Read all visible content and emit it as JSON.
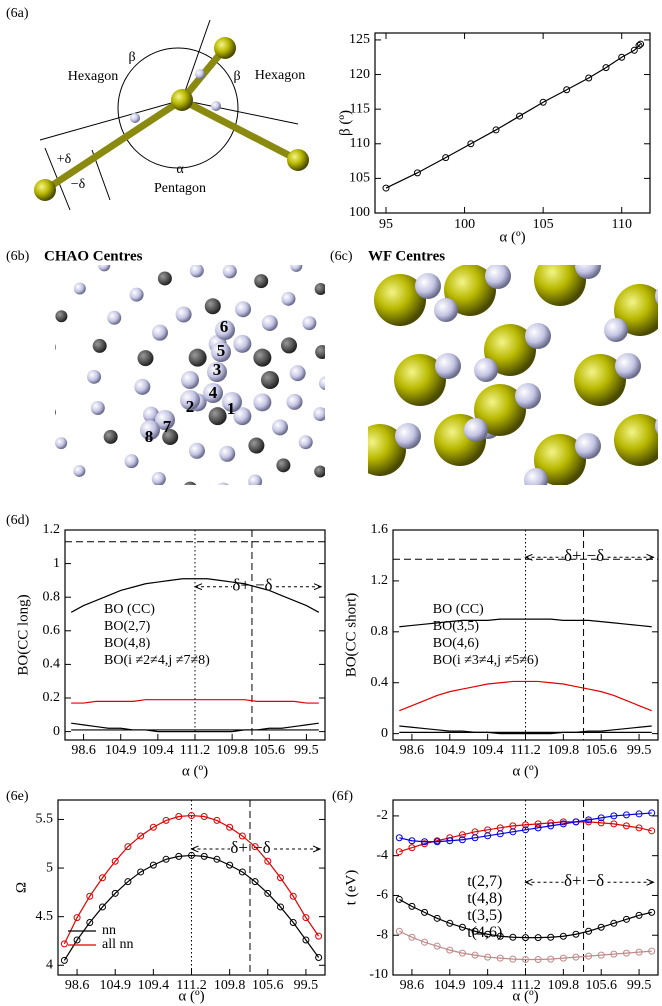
{
  "panel_labels": [
    "(6a)",
    "(6b)",
    "(6c)",
    "(6d)",
    "(6e)",
    "(6f)"
  ],
  "diagram_6a": {
    "labels": [
      "Hexagon",
      "β",
      "β",
      "Hexagon",
      "+δ",
      "−δ",
      "α",
      "Pentagon"
    ]
  },
  "image_6b": {
    "title": "CHAO Centres",
    "atom_labels": [
      "1",
      "2",
      "3",
      "4",
      "5",
      "6",
      "7",
      "8"
    ]
  },
  "image_6c": {
    "title": "WF Centres"
  },
  "chart_data": [
    {
      "type": "line",
      "xlabel": "α (º)",
      "ylabel": "β (º)",
      "x": [
        95,
        97,
        98.8,
        100.4,
        102,
        103.5,
        105,
        106.5,
        107.9,
        109,
        110,
        110.8,
        111.1,
        111.2
      ],
      "values": [
        103.6,
        105.8,
        108,
        110,
        112,
        114,
        116,
        117.8,
        119.5,
        121,
        122.5,
        123.5,
        124.2,
        124.4
      ],
      "color": "#000000",
      "markers": true,
      "xlim": [
        94.3,
        111.8
      ],
      "xticks": [
        95,
        100,
        105,
        110
      ],
      "ylim": [
        100,
        126
      ],
      "yticks": [
        100,
        105,
        110,
        115,
        120,
        125
      ]
    },
    {
      "type": "line",
      "xlabel": "α (º)",
      "ylabel": "BO(CC long)",
      "categories": [
        null,
        "98.6",
        null,
        null,
        "104.9",
        null,
        null,
        "109.4",
        null,
        null,
        "111.2",
        null,
        null,
        "109.8",
        null,
        null,
        "105.6",
        null,
        null,
        "99.5",
        null
      ],
      "series": [
        {
          "name": "BO (CC)",
          "color": "#000000",
          "values": [
            0.71,
            0.75,
            0.78,
            0.81,
            0.84,
            0.86,
            0.88,
            0.89,
            0.9,
            0.91,
            0.91,
            0.91,
            0.9,
            0.89,
            0.88,
            0.86,
            0.84,
            0.81,
            0.78,
            0.75,
            0.71
          ]
        },
        {
          "name": "BO(2,7)",
          "color": "#000000",
          "values": [
            0.05,
            0.04,
            0.03,
            0.02,
            0.02,
            0.01,
            0.01,
            0,
            0,
            0,
            0,
            0,
            0,
            0,
            0.01,
            0.01,
            0.02,
            0.02,
            0.03,
            0.04,
            0.05
          ]
        },
        {
          "name": "BO(4,8)",
          "color": "#e00000",
          "values": [
            0.17,
            0.17,
            0.18,
            0.18,
            0.18,
            0.18,
            0.19,
            0.19,
            0.19,
            0.19,
            0.19,
            0.19,
            0.19,
            0.19,
            0.19,
            0.18,
            0.18,
            0.18,
            0.18,
            0.17,
            0.17
          ]
        },
        {
          "name": "BO(i ≠2≠4,j ≠7≠8)",
          "color": "#000000",
          "values": [
            0.01,
            0.01,
            0.01,
            0.01,
            0.01,
            0.01,
            0.01,
            0.01,
            0.01,
            0.01,
            0.01,
            0.01,
            0.01,
            0.01,
            0.01,
            0.01,
            0.01,
            0.01,
            0.01,
            0.01,
            0.01
          ]
        }
      ],
      "markers": false,
      "legend": "center-left",
      "ylim": [
        -0.05,
        1.2
      ],
      "yticks": [
        0,
        0.2,
        0.4,
        0.6,
        0.8,
        1,
        1.2
      ],
      "vlines": [
        {
          "x": 10,
          "style": "dotted"
        },
        {
          "x": 14.6,
          "style": "dashed"
        }
      ],
      "hline": {
        "y": 1.13,
        "style": "dashed"
      },
      "annotation": {
        "left": "δ+",
        "right": "−δ"
      }
    },
    {
      "type": "line",
      "xlabel": "α (º)",
      "ylabel": "BO(CC short)",
      "categories": [
        null,
        "98.6",
        null,
        null,
        "104.9",
        null,
        null,
        "109.4",
        null,
        null,
        "111.2",
        null,
        null,
        "109.8",
        null,
        null,
        "105.6",
        null,
        null,
        "99.5",
        null
      ],
      "series": [
        {
          "name": "BO (CC)",
          "color": "#000000",
          "values": [
            0.84,
            0.85,
            0.86,
            0.87,
            0.88,
            0.89,
            0.89,
            0.89,
            0.9,
            0.9,
            0.9,
            0.9,
            0.9,
            0.89,
            0.89,
            0.89,
            0.88,
            0.87,
            0.86,
            0.85,
            0.84
          ]
        },
        {
          "name": "BO(3,5)",
          "color": "#000000",
          "values": [
            0.06,
            0.05,
            0.04,
            0.03,
            0.02,
            0.02,
            0.01,
            0.01,
            0,
            0,
            0,
            0,
            0,
            0.01,
            0.01,
            0.02,
            0.02,
            0.03,
            0.04,
            0.05,
            0.06
          ]
        },
        {
          "name": "BO(4,6)",
          "color": "#e00000",
          "values": [
            0.18,
            0.22,
            0.26,
            0.3,
            0.33,
            0.35,
            0.37,
            0.39,
            0.4,
            0.41,
            0.41,
            0.41,
            0.4,
            0.39,
            0.37,
            0.35,
            0.33,
            0.3,
            0.26,
            0.22,
            0.18
          ]
        },
        {
          "name": "BO(i ≠3≠4,j ≠5≠6)",
          "color": "#000000",
          "values": [
            0.01,
            0.01,
            0.01,
            0.01,
            0.01,
            0.01,
            0.01,
            0.01,
            0.01,
            0.01,
            0.01,
            0.01,
            0.01,
            0.01,
            0.01,
            0.01,
            0.01,
            0.01,
            0.01,
            0.01,
            0.01
          ]
        }
      ],
      "markers": false,
      "legend": "center-left",
      "ylim": [
        -0.05,
        1.6
      ],
      "yticks": [
        0,
        0.4,
        0.8,
        1.2,
        1.6
      ],
      "vlines": [
        {
          "x": 10,
          "style": "dotted"
        },
        {
          "x": 14.6,
          "style": "dashed"
        }
      ],
      "hline": {
        "y": 1.37,
        "style": "dashed"
      },
      "annotation": {
        "left": "δ+",
        "right": "−δ"
      }
    },
    {
      "type": "line",
      "xlabel": "α (º)",
      "ylabel": "Ω",
      "categories": [
        null,
        "98.6",
        null,
        null,
        "104.9",
        null,
        null,
        "109.4",
        null,
        null,
        "111.2",
        null,
        null,
        "109.8",
        null,
        null,
        "105.6",
        null,
        null,
        "99.5",
        null
      ],
      "series": [
        {
          "name": "nn",
          "color": "#000000",
          "values": [
            4.05,
            4.26,
            4.44,
            4.6,
            4.74,
            4.86,
            4.96,
            5.03,
            5.09,
            5.12,
            5.13,
            5.12,
            5.09,
            5.03,
            4.96,
            4.86,
            4.74,
            4.6,
            4.44,
            4.26,
            4.08
          ]
        },
        {
          "name": "all nn",
          "color": "#e00000",
          "values": [
            4.22,
            4.49,
            4.71,
            4.9,
            5.07,
            5.22,
            5.33,
            5.42,
            5.49,
            5.53,
            5.54,
            5.53,
            5.49,
            5.42,
            5.33,
            5.22,
            5.07,
            4.9,
            4.71,
            4.49,
            4.3
          ]
        }
      ],
      "markers": true,
      "legend": "lower-left",
      "legend_swatch": true,
      "ylim": [
        3.9,
        5.7
      ],
      "yticks": [
        4,
        4.5,
        5,
        5.5
      ],
      "vlines": [
        {
          "x": 10,
          "style": "dotted"
        },
        {
          "x": 14.6,
          "style": "dashed"
        }
      ],
      "annotation": {
        "left": "δ+",
        "right": "−δ"
      }
    },
    {
      "type": "line",
      "xlabel": "α (º)",
      "ylabel": "t (eV)",
      "categories": [
        null,
        "98.6",
        null,
        null,
        "104.9",
        null,
        null,
        "109.4",
        null,
        null,
        "111.2",
        null,
        null,
        "109.8",
        null,
        null,
        "105.6",
        null,
        null,
        "99.5",
        null
      ],
      "series": [
        {
          "name": "t(2,7)",
          "color": "#000000",
          "values": [
            -6.2,
            -6.55,
            -6.85,
            -7.15,
            -7.4,
            -7.6,
            -7.8,
            -7.95,
            -8.05,
            -8.1,
            -8.12,
            -8.12,
            -8.1,
            -8.05,
            -7.95,
            -7.8,
            -7.6,
            -7.4,
            -7.2,
            -7.0,
            -6.85
          ]
        },
        {
          "name": "t(4,8)",
          "color": "#e00000",
          "values": [
            -3.8,
            -3.6,
            -3.4,
            -3.25,
            -3.1,
            -2.95,
            -2.8,
            -2.7,
            -2.6,
            -2.5,
            -2.45,
            -2.4,
            -2.35,
            -2.3,
            -2.3,
            -2.3,
            -2.35,
            -2.4,
            -2.5,
            -2.6,
            -2.75
          ]
        },
        {
          "name": "t(3,5)",
          "color": "#c08a8a",
          "legend_color": "#cc6600",
          "values": [
            -7.8,
            -8.1,
            -8.35,
            -8.55,
            -8.75,
            -8.9,
            -9.0,
            -9.1,
            -9.15,
            -9.2,
            -9.22,
            -9.22,
            -9.2,
            -9.15,
            -9.1,
            -9.05,
            -9.0,
            -8.95,
            -8.9,
            -8.85,
            -8.8
          ]
        },
        {
          "name": "t(4,6)",
          "color": "#0000e0",
          "values": [
            -3.1,
            -3.25,
            -3.3,
            -3.3,
            -3.25,
            -3.2,
            -3.1,
            -3.0,
            -2.9,
            -2.8,
            -2.7,
            -2.6,
            -2.5,
            -2.4,
            -2.3,
            -2.2,
            -2.1,
            -2.0,
            -1.95,
            -1.9,
            -1.85
          ]
        }
      ],
      "markers": true,
      "legend": "center",
      "ylim": [
        -10,
        -1.2
      ],
      "yticks": [
        -10,
        -8,
        -6,
        -4,
        -2
      ],
      "vlines": [
        {
          "x": 10,
          "style": "dotted"
        },
        {
          "x": 14.6,
          "style": "dashed"
        }
      ],
      "annotation": {
        "left": "δ+",
        "right": "−δ"
      }
    }
  ]
}
